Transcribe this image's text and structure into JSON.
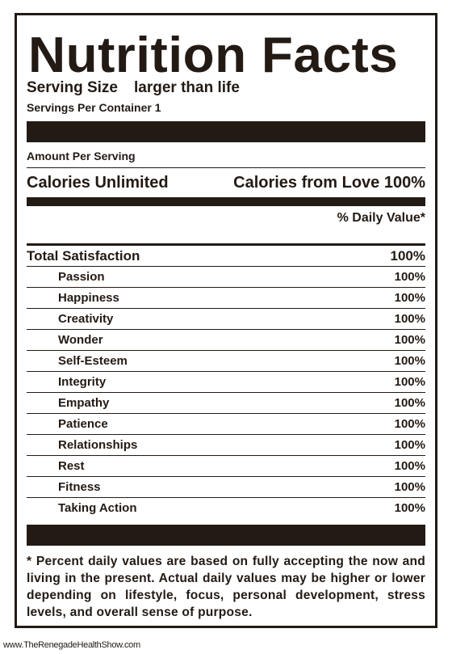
{
  "title": "Nutrition Facts",
  "serving": {
    "label": "Serving Size",
    "value": "larger than life",
    "per_container": "Servings Per Container 1"
  },
  "amount_per_serving": "Amount Per Serving",
  "calories": {
    "left": "Calories Unlimited",
    "right": "Calories from Love 100%"
  },
  "daily_value_header": "% Daily Value*",
  "total": {
    "name": "Total  Satisfaction",
    "value": "100%"
  },
  "nutrients": [
    {
      "name": "Passion",
      "value": "100%"
    },
    {
      "name": "Happiness",
      "value": "100%"
    },
    {
      "name": "Creativity",
      "value": "100%"
    },
    {
      "name": "Wonder",
      "value": "100%"
    },
    {
      "name": "Self-Esteem",
      "value": "100%"
    },
    {
      "name": "Integrity",
      "value": "100%"
    },
    {
      "name": "Empathy",
      "value": "100%"
    },
    {
      "name": "Patience",
      "value": "100%"
    },
    {
      "name": "Relationships",
      "value": "100%"
    },
    {
      "name": "Rest",
      "value": "100%"
    },
    {
      "name": "Fitness",
      "value": "100%"
    },
    {
      "name": "Taking Action",
      "value": "100%"
    }
  ],
  "footnote": "* Percent daily values are based on fully accepting the now and living in the present. Actual daily values may be higher or lower depending on lifestyle, focus, personal development, stress levels, and overall sense of purpose.",
  "credit": "www.TheRenegadeHealthShow.com",
  "colors": {
    "ink": "#231a14",
    "background": "#ffffff"
  }
}
